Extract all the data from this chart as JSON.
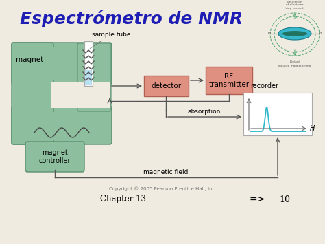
{
  "title": "Espectrómetro de NMR",
  "title_color": "#1e1eb4",
  "bg_color": "#f0ebe0",
  "green_color": "#8dbf9e",
  "green_dark": "#5a9070",
  "pink_color": "#e09080",
  "pink_dark": "#b06050",
  "recorder_bg": "#ffffff",
  "line_color": "#555555",
  "cyan_color": "#30b8cc",
  "chapter_text": "Chapter 13",
  "page_number": "10",
  "copyright": "Copyright © 2005 Pearson Prentice Hall, Inc.",
  "labels": {
    "sample_tube": "sample tube",
    "magnet": "magnet",
    "magnet_controller": "magnet\ncontroller",
    "detector": "detector",
    "rf_transmitter": "RF\ntransmitter",
    "recorder": "recorder",
    "absorption": "absorption",
    "magnetic_field": "magnetic field",
    "H_label": "H"
  }
}
